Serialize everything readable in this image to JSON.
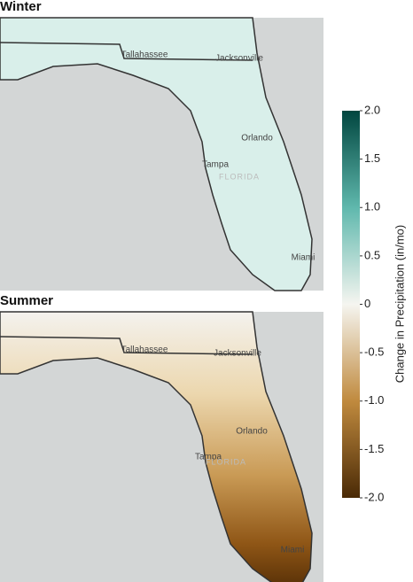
{
  "panels": [
    {
      "title": "Winter",
      "cities": [
        "Tallahassee",
        "Jacksonville",
        "Orlando",
        "Tampa",
        "Miami"
      ],
      "state_label": "FLORIDA"
    },
    {
      "title": "Summer",
      "cities": [
        "Tallahassee",
        "Jacksonville",
        "Orlando",
        "Tampa",
        "Miami"
      ],
      "state_label": "FLORIDA"
    }
  ],
  "colorbar": {
    "label": "Change in Precipitation (in/mo)",
    "lim": [
      -2,
      2
    ],
    "ticks": [
      {
        "value": 2,
        "label": "2.0"
      },
      1.5,
      {
        "value": 1,
        "label": "1.0"
      },
      0.5,
      0,
      -0.5,
      {
        "value": -1,
        "label": "-1.0"
      },
      -1.5,
      {
        "value": -2,
        "label": "-2.0"
      }
    ]
  }
}
